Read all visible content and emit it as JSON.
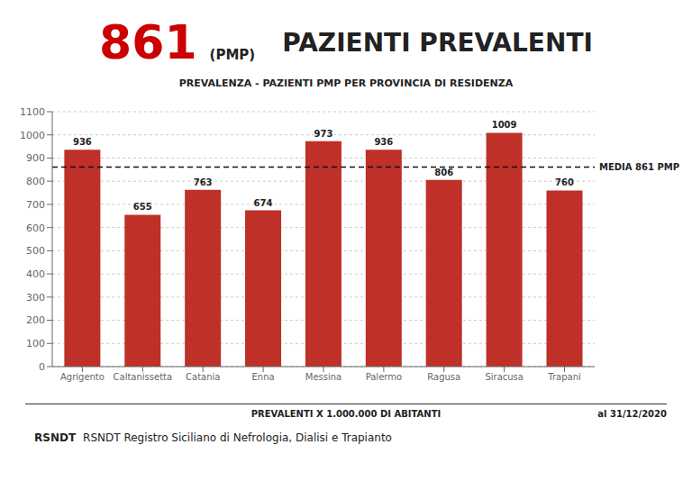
{
  "chart_data": {
    "type": "bar",
    "title": "PAZIENTI PREVALENTI",
    "subtitle": "PREVALENZA - PAZIENTI PMP PER PROVINCIA DI RESIDENZA",
    "annotations": [
      "861",
      "(PMP)",
      "al 31/12/2020",
      "RSNDT",
      "RSNDT Registro Siciliano di Nefrologia, Dialisi e Trapianto"
    ],
    "xlabel": "PREVALENTI X 1.000.000 DI ABITANTI",
    "categories": [
      "Agrigento",
      "Caltanissetta",
      "Catania",
      "Enna",
      "Messina",
      "Palermo",
      "Ragusa",
      "Siracusa",
      "Trapani"
    ],
    "values": [
      936,
      655,
      763,
      674,
      973,
      936,
      806,
      1009,
      760
    ],
    "color": "#be3028",
    "ylim": [
      0,
      1100
    ],
    "yticks": [
      0,
      100,
      200,
      300,
      400,
      500,
      600,
      700,
      800,
      900,
      1000,
      1100
    ],
    "grid": true,
    "data_labels": true,
    "reference_line": {
      "value": 861,
      "label": "MEDIA 861 PMP",
      "color": "#111111"
    }
  }
}
